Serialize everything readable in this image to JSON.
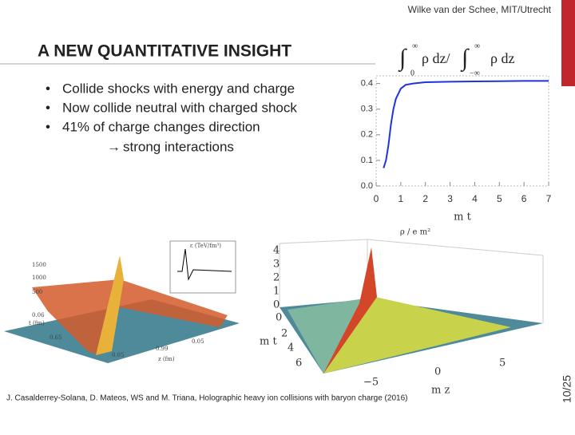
{
  "header": "Wilke van der Schee, MIT/Utrecht",
  "title": "A NEW QUANTITATIVE INSIGHT",
  "bullets": [
    "Collide shocks with energy and charge",
    "Now collide neutral with charged shock",
    "41% of charge changes direction"
  ],
  "sub_point": "strong interactions",
  "citation": "J. Casalderrey-Solana, D. Mateos, WS and M. Triana, Holographic heavy ion collisions with baryon charge (2016)",
  "page_number": "10/25",
  "left_figure": {
    "z_label": "ε (TeV/fm³)",
    "z_ticks": [
      "1500",
      "1000",
      "500"
    ],
    "t_label": "t (fm)",
    "t_ticks": [
      "0.06",
      "0.65"
    ],
    "x_label": "z (fm)",
    "x_ticks": [
      "0.05",
      "0.99",
      "0.05"
    ]
  },
  "right_figure": {
    "z_label": "ρ / e m²",
    "z_ticks": [
      "4",
      "3",
      "2",
      "1",
      "0"
    ],
    "t_label": "m t",
    "t_ticks": [
      "0",
      "2",
      "4",
      "6"
    ],
    "x_label": "m z",
    "x_ticks": [
      "−5",
      "0",
      "5"
    ]
  },
  "chart_data": {
    "type": "line",
    "xlabel": "m t",
    "color": "#1f35d8",
    "x": [
      0.3,
      0.4,
      0.5,
      0.6,
      0.7,
      0.8,
      1.0,
      1.2,
      1.5,
      2.0,
      3.0,
      4.0,
      5.0,
      6.0,
      7.0
    ],
    "values": [
      0.07,
      0.1,
      0.16,
      0.24,
      0.3,
      0.34,
      0.38,
      0.395,
      0.4,
      0.405,
      0.407,
      0.408,
      0.409,
      0.41,
      0.41
    ],
    "xlim": [
      0,
      7
    ],
    "ylim": [
      0,
      0.43
    ],
    "xticks": [
      0,
      1,
      2,
      3,
      4,
      5,
      6,
      7
    ],
    "yticks": [
      {
        "value": 0,
        "label": "0.0"
      },
      0.1,
      0.2,
      0.3,
      0.4
    ]
  }
}
